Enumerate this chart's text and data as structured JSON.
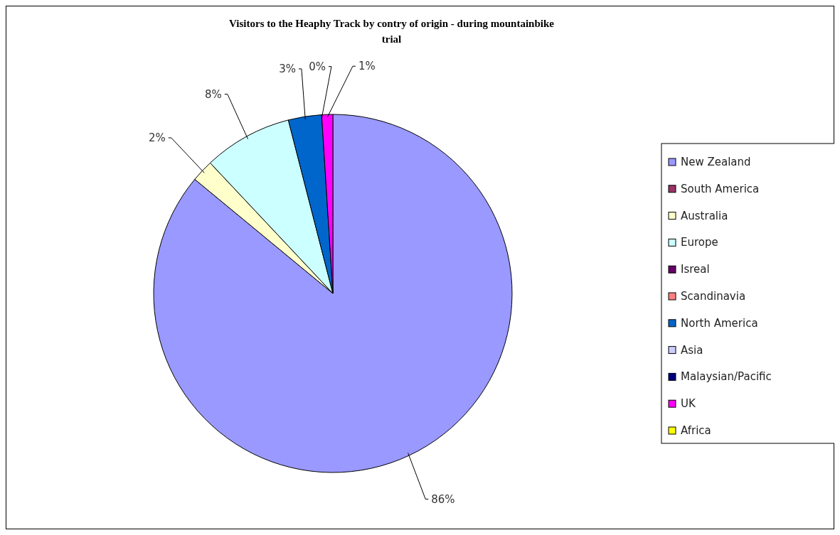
{
  "chart_data": {
    "type": "pie",
    "title": "Visitors to the Heaphy Track by contry of origin - during mountainbike trial",
    "categories": [
      "New Zealand",
      "South America",
      "Australia",
      "Europe",
      "Isreal",
      "Scandinavia",
      "North America",
      "Asia",
      "Malaysian/Pacific",
      "UK",
      "Africa"
    ],
    "values": [
      86,
      null,
      2,
      8,
      null,
      null,
      3,
      0,
      null,
      1,
      null
    ],
    "colors": [
      "#9999ff",
      "#993366",
      "#ffffcc",
      "#ccffff",
      "#660066",
      "#ff8080",
      "#0066cc",
      "#ccccff",
      "#000080",
      "#ff00ff",
      "#ffff00"
    ],
    "value_labels": [
      "86%",
      null,
      "2%",
      "8%",
      null,
      null,
      "3%",
      "0%",
      null,
      "1%",
      null
    ],
    "legend": "right"
  }
}
